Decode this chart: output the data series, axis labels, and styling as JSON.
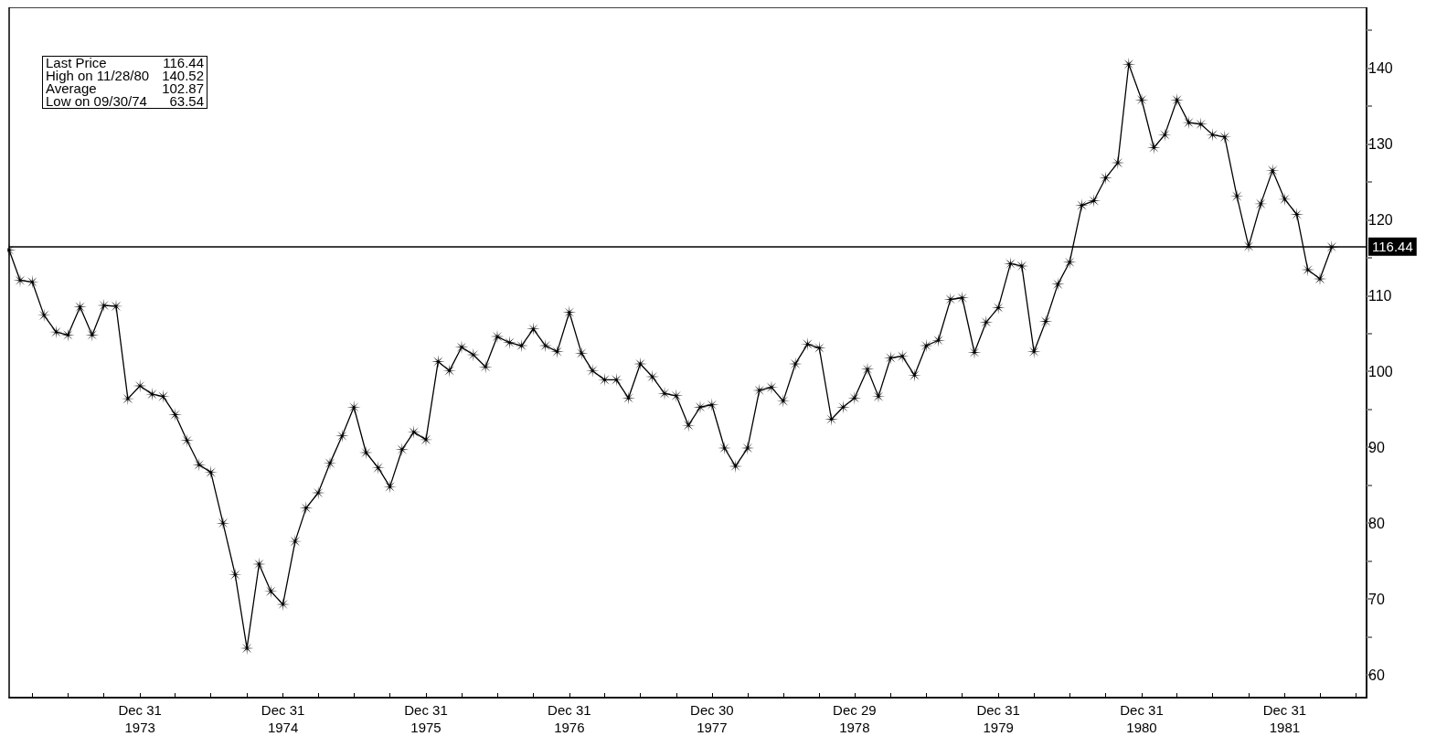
{
  "chart_data": {
    "type": "line",
    "x": [
      "1973-01-31",
      "1973-02-28",
      "1973-03-31",
      "1973-04-30",
      "1973-05-31",
      "1973-06-30",
      "1973-07-31",
      "1973-08-31",
      "1973-09-30",
      "1973-10-31",
      "1973-11-30",
      "1973-12-31",
      "1974-01-31",
      "1974-02-28",
      "1974-03-31",
      "1974-04-30",
      "1974-05-31",
      "1974-06-30",
      "1974-07-31",
      "1974-08-31",
      "1974-09-30",
      "1974-10-31",
      "1974-11-30",
      "1974-12-31",
      "1975-01-31",
      "1975-02-28",
      "1975-03-31",
      "1975-04-30",
      "1975-05-31",
      "1975-06-30",
      "1975-07-31",
      "1975-08-31",
      "1975-09-30",
      "1975-10-31",
      "1975-11-30",
      "1975-12-31",
      "1976-01-31",
      "1976-02-29",
      "1976-03-31",
      "1976-04-30",
      "1976-05-31",
      "1976-06-30",
      "1976-07-31",
      "1976-08-31",
      "1976-09-30",
      "1976-10-31",
      "1976-11-30",
      "1976-12-31",
      "1977-01-31",
      "1977-02-28",
      "1977-03-31",
      "1977-04-30",
      "1977-05-31",
      "1977-06-30",
      "1977-07-31",
      "1977-08-31",
      "1977-09-30",
      "1977-10-31",
      "1977-11-30",
      "1977-12-30",
      "1978-01-31",
      "1978-02-28",
      "1978-03-31",
      "1978-04-30",
      "1978-05-31",
      "1978-06-30",
      "1978-07-31",
      "1978-08-31",
      "1978-09-30",
      "1978-10-31",
      "1978-11-30",
      "1978-12-29",
      "1979-01-31",
      "1979-02-28",
      "1979-03-31",
      "1979-04-30",
      "1979-05-31",
      "1979-06-30",
      "1979-07-31",
      "1979-08-31",
      "1979-09-30",
      "1979-10-31",
      "1979-11-30",
      "1979-12-31",
      "1980-01-31",
      "1980-02-29",
      "1980-03-31",
      "1980-04-30",
      "1980-05-31",
      "1980-06-30",
      "1980-07-31",
      "1980-08-31",
      "1980-09-30",
      "1980-10-31",
      "1980-11-28",
      "1980-12-31",
      "1981-01-31",
      "1981-02-28",
      "1981-03-31",
      "1981-04-30",
      "1981-05-31",
      "1981-06-30",
      "1981-07-31",
      "1981-08-31",
      "1981-09-30",
      "1981-10-31",
      "1981-11-30",
      "1981-12-31",
      "1982-01-31",
      "1982-02-28",
      "1982-03-31",
      "1982-04-30"
    ],
    "series": [
      {
        "color": "#000000",
        "values": [
          116.0,
          112.0,
          111.8,
          107.4,
          105.2,
          104.8,
          108.5,
          104.8,
          108.7,
          108.6,
          96.4,
          98.1,
          97.0,
          96.7,
          94.3,
          90.9,
          87.7,
          86.7,
          80.0,
          73.2,
          63.5,
          74.6,
          71.0,
          69.3,
          77.6,
          82.0,
          84.0,
          87.9,
          91.5,
          95.3,
          89.3,
          87.3,
          84.8,
          89.7,
          92.0,
          91.0,
          101.3,
          100.1,
          103.2,
          102.2,
          100.6,
          104.6,
          103.8,
          103.4,
          105.6,
          103.4,
          102.6,
          107.8,
          102.4,
          100.1,
          98.9,
          98.9,
          96.5,
          101.0,
          99.3,
          97.1,
          96.8,
          92.9,
          95.3,
          95.6,
          89.9,
          87.5,
          89.9,
          97.5,
          97.9,
          96.1,
          101.0,
          103.6,
          103.1,
          93.7,
          95.3,
          96.5,
          100.3,
          96.7,
          101.8,
          102.0,
          99.5,
          103.4,
          104.1,
          109.5,
          109.7,
          102.5,
          106.5,
          108.4,
          114.2,
          113.9,
          102.6,
          106.6,
          111.5,
          114.4,
          121.9,
          122.5,
          125.5,
          127.5,
          140.5,
          135.8,
          129.5,
          131.2,
          135.8,
          132.8,
          132.6,
          131.2,
          130.9,
          123.1,
          116.5,
          122.1,
          126.5,
          122.7,
          120.7,
          113.4,
          112.2,
          116.4
        ]
      }
    ],
    "xlim": [
      "1973-01-31",
      "1982-07-28"
    ],
    "xticks": [
      {
        "value": "1973-03-31",
        "label": null
      },
      {
        "value": "1973-06-30",
        "label": null
      },
      {
        "value": "1973-09-30",
        "label": null
      },
      {
        "value": "1973-12-31",
        "label": "Dec 31\n1973"
      },
      {
        "value": "1974-03-31",
        "label": null
      },
      {
        "value": "1974-06-30",
        "label": null
      },
      {
        "value": "1974-09-30",
        "label": null
      },
      {
        "value": "1974-12-31",
        "label": "Dec 31\n1974"
      },
      {
        "value": "1975-03-31",
        "label": null
      },
      {
        "value": "1975-06-30",
        "label": null
      },
      {
        "value": "1975-09-30",
        "label": null
      },
      {
        "value": "1975-12-31",
        "label": "Dec 31\n1975"
      },
      {
        "value": "1976-03-31",
        "label": null
      },
      {
        "value": "1976-06-30",
        "label": null
      },
      {
        "value": "1976-09-30",
        "label": null
      },
      {
        "value": "1976-12-31",
        "label": "Dec 31\n1976"
      },
      {
        "value": "1977-03-31",
        "label": null
      },
      {
        "value": "1977-06-30",
        "label": null
      },
      {
        "value": "1977-09-30",
        "label": null
      },
      {
        "value": "1977-12-30",
        "label": "Dec 30\n1977"
      },
      {
        "value": "1978-03-31",
        "label": null
      },
      {
        "value": "1978-06-30",
        "label": null
      },
      {
        "value": "1978-09-30",
        "label": null
      },
      {
        "value": "1978-12-29",
        "label": "Dec 29\n1978"
      },
      {
        "value": "1979-03-31",
        "label": null
      },
      {
        "value": "1979-06-30",
        "label": null
      },
      {
        "value": "1979-09-30",
        "label": null
      },
      {
        "value": "1979-12-31",
        "label": "Dec 31\n1979"
      },
      {
        "value": "1980-03-31",
        "label": null
      },
      {
        "value": "1980-06-30",
        "label": null
      },
      {
        "value": "1980-09-30",
        "label": null
      },
      {
        "value": "1980-12-31",
        "label": "Dec 31\n1980"
      },
      {
        "value": "1981-03-31",
        "label": null
      },
      {
        "value": "1981-06-30",
        "label": null
      },
      {
        "value": "1981-09-30",
        "label": null
      },
      {
        "value": "1981-12-31",
        "label": "Dec 31\n1981"
      },
      {
        "value": "1982-03-31",
        "label": null
      },
      {
        "value": "1982-06-30",
        "label": null
      }
    ],
    "ylim": [
      57,
      148
    ],
    "yticks": [
      60,
      {
        "value": 65,
        "label": null
      },
      70,
      {
        "value": 75,
        "label": null
      },
      80,
      {
        "value": 85,
        "label": null
      },
      90,
      {
        "value": 95,
        "label": null
      },
      100,
      {
        "value": 105,
        "label": null
      },
      110,
      {
        "value": 115,
        "label": null
      },
      120,
      {
        "value": 125,
        "label": null
      },
      130,
      {
        "value": 135,
        "label": null
      },
      140,
      {
        "value": 145,
        "label": null
      }
    ],
    "ref_lines": [
      {
        "axis": "y",
        "value": 116.44,
        "label": "116.44",
        "color": "#000000"
      }
    ],
    "annotations": [
      "Last Price",
      "116.44",
      "High on 11/28/80",
      "140.52",
      "Average",
      "102.87",
      "Low on 09/30/74",
      "63.54"
    ],
    "marker": "star",
    "line_style": "solid"
  }
}
